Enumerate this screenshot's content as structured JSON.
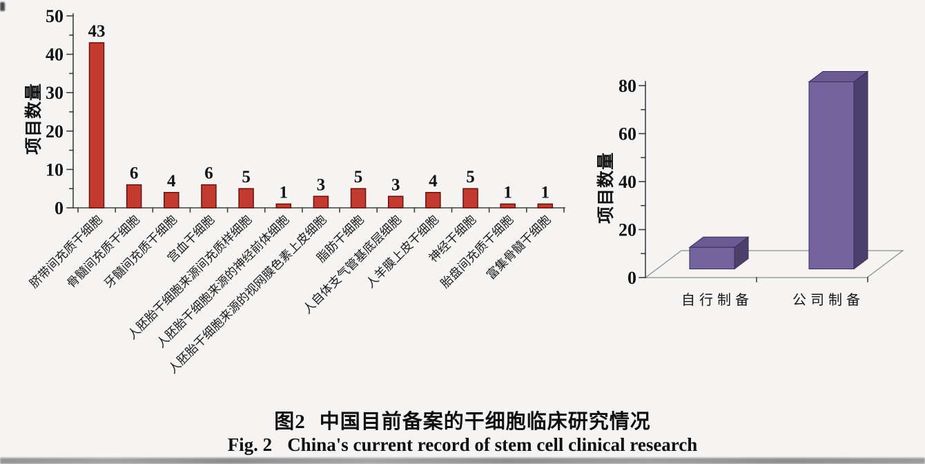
{
  "figure": {
    "caption_cn_label": "图2",
    "caption_cn_text": "中国目前备案的干细胞临床研究情况",
    "caption_en_label": "Fig. 2",
    "caption_en_text": "China's current record of stem cell clinical research"
  },
  "chart_data": [
    {
      "type": "bar",
      "title": "",
      "xlabel": "",
      "ylabel": "项目数量",
      "ylim": [
        0,
        50
      ],
      "yticks": [
        0,
        10,
        20,
        30,
        40,
        50
      ],
      "yticks_minor": [
        5,
        15,
        25,
        35,
        45
      ],
      "grid": "off",
      "bar_color": "#c23a30",
      "bar_edge_color": "#69100a",
      "value_labels_shown": true,
      "categories": [
        "脐带间充质干细胞",
        "骨髓间充质干细胞",
        "牙髓间充质干细胞",
        "宫血干细胞",
        "人胚胎干细胞来源间充质样细胞",
        "人胚胎干细胞来源的神经前体细胞",
        "人胚胎干细胞来源的视网膜色素上皮细胞",
        "脂肪干细胞",
        "人自体支气管基底层细胞",
        "人羊膜上皮干细胞",
        "神经干细胞",
        "胎盘间充质干细胞",
        "富集骨髓干细胞"
      ],
      "values": [
        43,
        6,
        4,
        6,
        5,
        1,
        3,
        5,
        3,
        4,
        5,
        1,
        1
      ]
    },
    {
      "type": "bar3d",
      "title": "",
      "xlabel": "",
      "ylabel": "项目数量",
      "ylim": [
        0,
        80
      ],
      "yticks": [
        0,
        20,
        40,
        60,
        80
      ],
      "yticks_minor": [
        10,
        30,
        50,
        70
      ],
      "grid": "off",
      "bar_front_color": "#75639f",
      "bar_top_color": "#6a5a94",
      "bar_side_color": "#4b3f6b",
      "bar_edge_color": "#372e57",
      "categories": [
        "自行制备",
        "公司制备"
      ],
      "values": [
        9,
        78
      ]
    }
  ]
}
